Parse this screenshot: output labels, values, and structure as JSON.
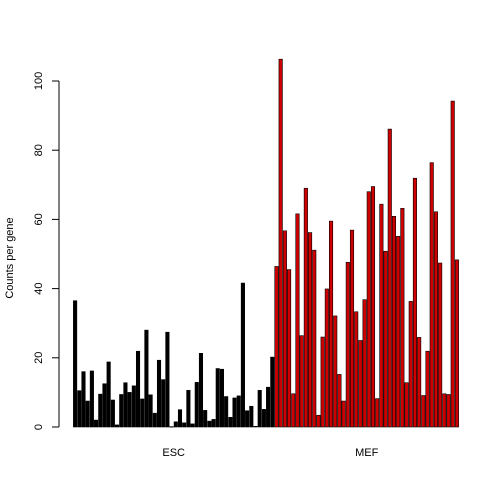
{
  "chart_data": {
    "type": "bar",
    "ylabel": "Counts per gene",
    "xlabel": "",
    "ylim": [
      0,
      108
    ],
    "yticks": [
      0,
      20,
      40,
      60,
      80,
      100
    ],
    "groups": [
      {
        "name": "ESC",
        "color": "#000000",
        "values": [
          36.5,
          10.5,
          16,
          7.5,
          16.2,
          2,
          9.5,
          12.5,
          18.8,
          7.8,
          0.6,
          9.4,
          12.8,
          10,
          11.9,
          21.9,
          8.1,
          28,
          9.3,
          4,
          19.3,
          13.7,
          27.4,
          0.1,
          1.5,
          5,
          1.2,
          10.6,
          0.9,
          12.9,
          21.3,
          4.8,
          1.7,
          2.2,
          16.9,
          16.7,
          8.8,
          2.8,
          8.4,
          9,
          41.6,
          4.7,
          6,
          0.2,
          10.6,
          5.1,
          11.5,
          20.2
        ]
      },
      {
        "name": "MEF",
        "color": "#cc0000",
        "values": [
          46.4,
          106.3,
          56.7,
          45.5,
          9.6,
          61.6,
          26.4,
          69,
          56.2,
          51.1,
          3.4,
          26,
          39.9,
          59.5,
          32.1,
          15.2,
          7.5,
          47.6,
          56.9,
          33.3,
          25,
          36.8,
          68,
          69.5,
          8.2,
          64.4,
          50.8,
          86.1,
          60.9,
          55.1,
          63.2,
          12.8,
          36.3,
          71.9,
          25.9,
          9.1,
          21.9,
          76.4,
          62.2,
          47.4,
          9.6,
          9.4,
          94.2,
          48.3
        ]
      }
    ]
  }
}
